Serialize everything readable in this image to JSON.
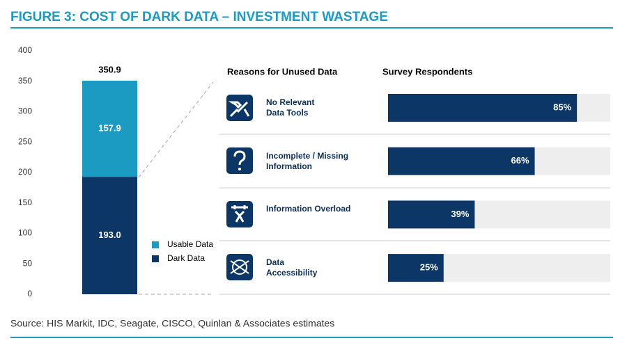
{
  "title": "FIGURE 3: COST OF DARK DATA – INVESTMENT WASTAGE",
  "source": "Source: HIS Markit, IDC, Seagate, CISCO, Quinlan & Associates estimates",
  "chart_data": [
    {
      "type": "stacked_bar",
      "categories": [
        null
      ],
      "series": [
        {
          "name": "Dark Data",
          "color": "#0b3665",
          "values": [
            193.0
          ],
          "value_labels": [
            "193.0"
          ]
        },
        {
          "name": "Usable Data",
          "color": "#1b9bc2",
          "values": [
            157.9
          ],
          "value_labels": [
            "157.9"
          ]
        }
      ],
      "total": 350.9,
      "ylim": [
        0,
        400
      ],
      "yticks": [
        0,
        50,
        100,
        150,
        200,
        250,
        300,
        350,
        400
      ]
    },
    {
      "type": "hbar",
      "category_header": "Reasons for Unused Data",
      "value_header": "Survey Respondents",
      "categories": [
        "No Relevant Data Tools",
        "Incomplete / Missing Information",
        "Information Overload",
        "Data Accessibility"
      ],
      "values": [
        85,
        66,
        39,
        25
      ],
      "value_labels": [
        "85%",
        "66%",
        "39%",
        "25%"
      ],
      "color": "#0b3665",
      "track_color": "#eeeeee",
      "xlim": [
        0,
        100
      ]
    }
  ]
}
